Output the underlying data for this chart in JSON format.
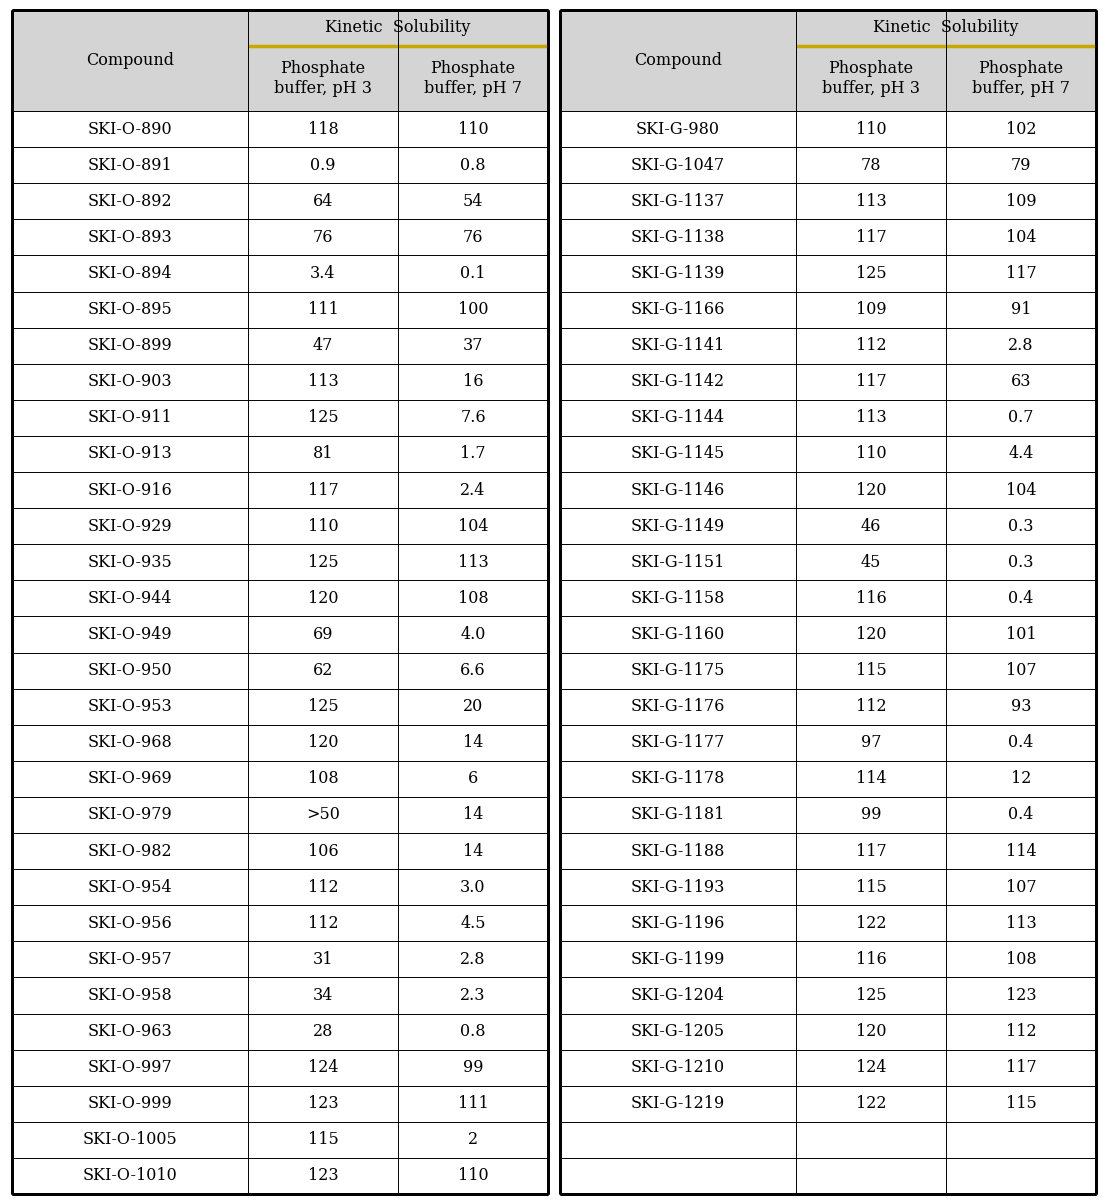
{
  "header_bg": "#d4d4d4",
  "body_bg": "#ffffff",
  "border_color": "#000000",
  "thick_line_color": "#c8a800",
  "left_table": {
    "col_header": "Kinetic  Solubility",
    "rows": [
      [
        "SKI-O-890",
        "118",
        "110"
      ],
      [
        "SKI-O-891",
        "0.9",
        "0.8"
      ],
      [
        "SKI-O-892",
        "64",
        "54"
      ],
      [
        "SKI-O-893",
        "76",
        "76"
      ],
      [
        "SKI-O-894",
        "3.4",
        "0.1"
      ],
      [
        "SKI-O-895",
        "111",
        "100"
      ],
      [
        "SKI-O-899",
        "47",
        "37"
      ],
      [
        "SKI-O-903",
        "113",
        "16"
      ],
      [
        "SKI-O-911",
        "125",
        "7.6"
      ],
      [
        "SKI-O-913",
        "81",
        "1.7"
      ],
      [
        "SKI-O-916",
        "117",
        "2.4"
      ],
      [
        "SKI-O-929",
        "110",
        "104"
      ],
      [
        "SKI-O-935",
        "125",
        "113"
      ],
      [
        "SKI-O-944",
        "120",
        "108"
      ],
      [
        "SKI-O-949",
        "69",
        "4.0"
      ],
      [
        "SKI-O-950",
        "62",
        "6.6"
      ],
      [
        "SKI-O-953",
        "125",
        "20"
      ],
      [
        "SKI-O-968",
        "120",
        "14"
      ],
      [
        "SKI-O-969",
        "108",
        "6"
      ],
      [
        "SKI-O-979",
        ">50",
        "14"
      ],
      [
        "SKI-O-982",
        "106",
        "14"
      ],
      [
        "SKI-O-954",
        "112",
        "3.0"
      ],
      [
        "SKI-O-956",
        "112",
        "4.5"
      ],
      [
        "SKI-O-957",
        "31",
        "2.8"
      ],
      [
        "SKI-O-958",
        "34",
        "2.3"
      ],
      [
        "SKI-O-963",
        "28",
        "0.8"
      ],
      [
        "SKI-O-997",
        "124",
        "99"
      ],
      [
        "SKI-O-999",
        "123",
        "111"
      ],
      [
        "SKI-O-1005",
        "115",
        "2"
      ],
      [
        "SKI-O-1010",
        "123",
        "110"
      ]
    ]
  },
  "right_table": {
    "col_header": "Kinetic  Solubility",
    "rows": [
      [
        "SKI-G-980",
        "110",
        "102"
      ],
      [
        "SKI-G-1047",
        "78",
        "79"
      ],
      [
        "SKI-G-1137",
        "113",
        "109"
      ],
      [
        "SKI-G-1138",
        "117",
        "104"
      ],
      [
        "SKI-G-1139",
        "125",
        "117"
      ],
      [
        "SKI-G-1166",
        "109",
        "91"
      ],
      [
        "SKI-G-1141",
        "112",
        "2.8"
      ],
      [
        "SKI-G-1142",
        "117",
        "63"
      ],
      [
        "SKI-G-1144",
        "113",
        "0.7"
      ],
      [
        "SKI-G-1145",
        "110",
        "4.4"
      ],
      [
        "SKI-G-1146",
        "120",
        "104"
      ],
      [
        "SKI-G-1149",
        "46",
        "0.3"
      ],
      [
        "SKI-G-1151",
        "45",
        "0.3"
      ],
      [
        "SKI-G-1158",
        "116",
        "0.4"
      ],
      [
        "SKI-G-1160",
        "120",
        "101"
      ],
      [
        "SKI-G-1175",
        "115",
        "107"
      ],
      [
        "SKI-G-1176",
        "112",
        "93"
      ],
      [
        "SKI-G-1177",
        "97",
        "0.4"
      ],
      [
        "SKI-G-1178",
        "114",
        "12"
      ],
      [
        "SKI-G-1181",
        "99",
        "0.4"
      ],
      [
        "SKI-G-1188",
        "117",
        "114"
      ],
      [
        "SKI-G-1193",
        "115",
        "107"
      ],
      [
        "SKI-G-1196",
        "122",
        "113"
      ],
      [
        "SKI-G-1199",
        "116",
        "108"
      ],
      [
        "SKI-G-1204",
        "125",
        "123"
      ],
      [
        "SKI-G-1205",
        "120",
        "112"
      ],
      [
        "SKI-G-1210",
        "124",
        "117"
      ],
      [
        "SKI-G-1219",
        "122",
        "115"
      ],
      [
        "",
        "",
        ""
      ],
      [
        "",
        "",
        ""
      ]
    ]
  },
  "font_size": 11.5,
  "n_data_rows": 30,
  "fig_width": 11.08,
  "fig_height": 12.04,
  "dpi": 100
}
